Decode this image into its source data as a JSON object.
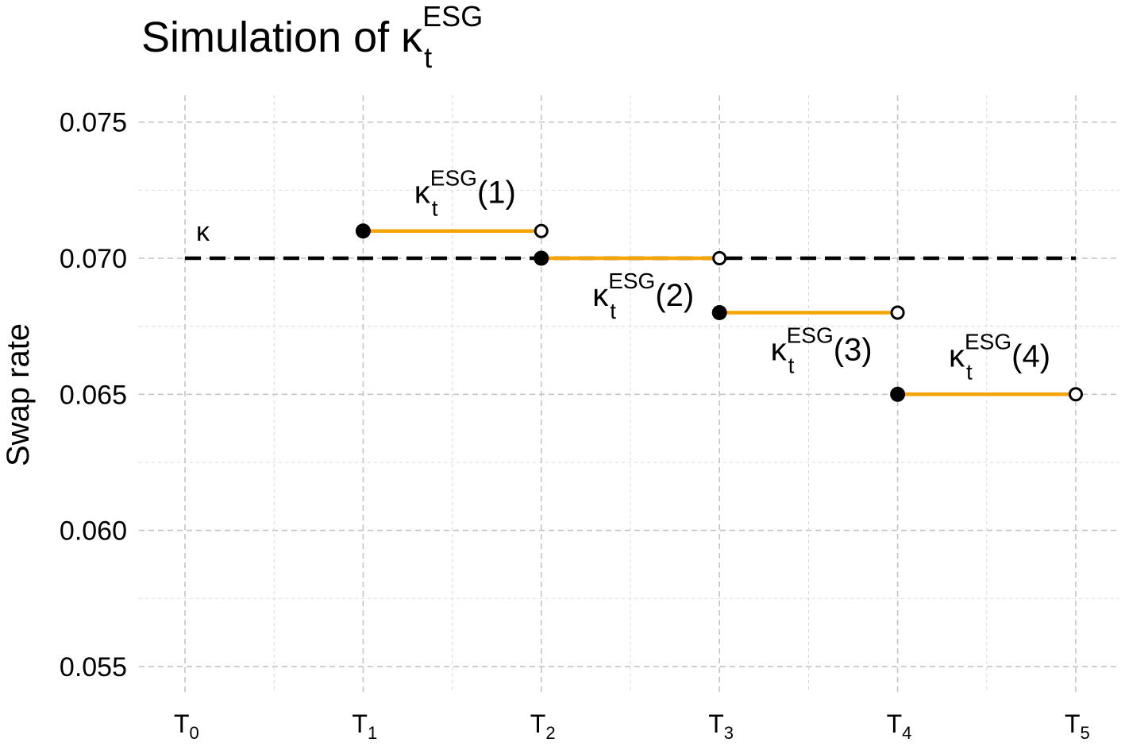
{
  "chart_data": {
    "type": "line",
    "title": {
      "main": "Simulation of κ",
      "superscript": "ESG",
      "subscript": "t"
    },
    "xlabel": "",
    "ylabel": "Swap rate",
    "xlim": [
      -0.5,
      5.25
    ],
    "ylim": [
      0.054,
      0.076
    ],
    "y_ticks": [
      0.055,
      0.06,
      0.065,
      0.07,
      0.075
    ],
    "y_tick_labels": [
      "0.055",
      "0.060",
      "0.065",
      "0.070",
      "0.075"
    ],
    "x_ticks": [
      0,
      1,
      2,
      3,
      4,
      5
    ],
    "x_tick_labels": [
      {
        "base": "T",
        "sub": "0"
      },
      {
        "base": "T",
        "sub": "1"
      },
      {
        "base": "T",
        "sub": "2"
      },
      {
        "base": "T",
        "sub": "3"
      },
      {
        "base": "T",
        "sub": "4"
      },
      {
        "base": "T",
        "sub": "5"
      }
    ],
    "grid": true,
    "reference_line": {
      "label": "κ",
      "y": 0.07,
      "x_start": 0,
      "x_end": 5,
      "style": "dashed",
      "color": "#000000"
    },
    "series_color": "#F5A300",
    "segments": [
      {
        "x_start": 1,
        "x_end": 2,
        "y": 0.071,
        "label": {
          "base": "κ",
          "sup": "ESG",
          "sub": "t",
          "suffix": "(1)"
        }
      },
      {
        "x_start": 2,
        "x_end": 3,
        "y": 0.07,
        "label": {
          "base": "κ",
          "sup": "ESG",
          "sub": "t",
          "suffix": "(2)"
        }
      },
      {
        "x_start": 3,
        "x_end": 4,
        "y": 0.068,
        "label": {
          "base": "κ",
          "sup": "ESG",
          "sub": "t",
          "suffix": "(3)"
        }
      },
      {
        "x_start": 4,
        "x_end": 5,
        "y": 0.065,
        "label": {
          "base": "κ",
          "sup": "ESG",
          "sub": "t",
          "suffix": "(4)"
        }
      }
    ]
  }
}
